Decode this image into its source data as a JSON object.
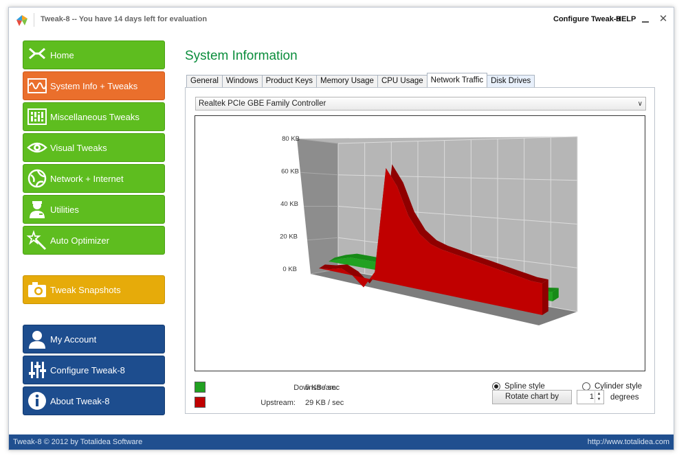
{
  "window": {
    "title": "Tweak-8 -- You have 14 days left for evaluation",
    "configure_label": "Configure Tweak-8",
    "help_label": "HELP",
    "close_glyph": "✕"
  },
  "sidebar": {
    "items": [
      {
        "label": "Home",
        "icon": "home-icon",
        "color": "#5ebd1f"
      },
      {
        "label": "System Info + Tweaks",
        "icon": "wave-icon",
        "color": "#ea6f2c"
      },
      {
        "label": "Miscellaneous Tweaks",
        "icon": "equalizer-icon",
        "color": "#5ebd1f"
      },
      {
        "label": "Visual Tweaks",
        "icon": "eye-icon",
        "color": "#5ebd1f"
      },
      {
        "label": "Network + Internet",
        "icon": "globe-icon",
        "color": "#5ebd1f"
      },
      {
        "label": "Utilities",
        "icon": "technician-icon",
        "color": "#5ebd1f"
      },
      {
        "label": "Auto Optimizer",
        "icon": "magic-wand-icon",
        "color": "#5ebd1f"
      },
      {
        "label": "Tweak Snapshots",
        "icon": "camera-icon",
        "color": "#e6ab0a"
      },
      {
        "label": "My Account",
        "icon": "user-icon",
        "color": "#1d4d8e"
      },
      {
        "label": "Configure Tweak-8",
        "icon": "sliders-icon",
        "color": "#1d4d8e"
      },
      {
        "label": "About Tweak-8",
        "icon": "info-icon",
        "color": "#1d4d8e"
      }
    ]
  },
  "main": {
    "title": "System Information",
    "tabs": [
      {
        "label": "General"
      },
      {
        "label": "Windows"
      },
      {
        "label": "Product Keys"
      },
      {
        "label": "Memory Usage"
      },
      {
        "label": "CPU Usage"
      },
      {
        "label": "Network Traffic",
        "active": true
      },
      {
        "label": "Disk Drives"
      }
    ],
    "adapter": "Realtek PCIe GBE Family Controller",
    "legend": {
      "downstream_label": "Downstream:",
      "downstream_value": "5 KB / sec",
      "downstream_color": "#21a121",
      "upstream_label": "Upstream:",
      "upstream_value": "29 KB / sec",
      "upstream_color": "#c00000"
    },
    "options": {
      "spline_label": "Spline style",
      "spline_selected": true,
      "cylinder_label": "Cylinder style",
      "rotate_label": "Rotate chart by",
      "degrees_value": "1",
      "degrees_label": "degrees"
    }
  },
  "chart_data": {
    "type": "area",
    "y_tick_labels": [
      "0 KB",
      "20 KB",
      "40 KB",
      "60 KB",
      "80 KB"
    ],
    "ylim": [
      0,
      80
    ],
    "three_d": true,
    "grid": true,
    "series": [
      {
        "name": "Downstream",
        "color": "#21a121",
        "values": [
          0,
          3,
          5,
          5,
          5,
          5,
          18,
          5,
          5,
          5,
          5,
          5,
          5,
          5,
          5,
          5,
          5,
          5,
          5,
          5,
          6
        ]
      },
      {
        "name": "Upstream",
        "color": "#c00000",
        "values": [
          0,
          1,
          3,
          0,
          -6,
          5,
          72,
          62,
          45,
          35,
          30,
          28,
          27,
          26,
          25,
          24,
          23,
          22,
          21,
          20,
          20
        ]
      }
    ]
  },
  "footer": {
    "left": "Tweak-8 © 2012 by Totalidea Software",
    "right": "http://www.totalidea.com"
  }
}
